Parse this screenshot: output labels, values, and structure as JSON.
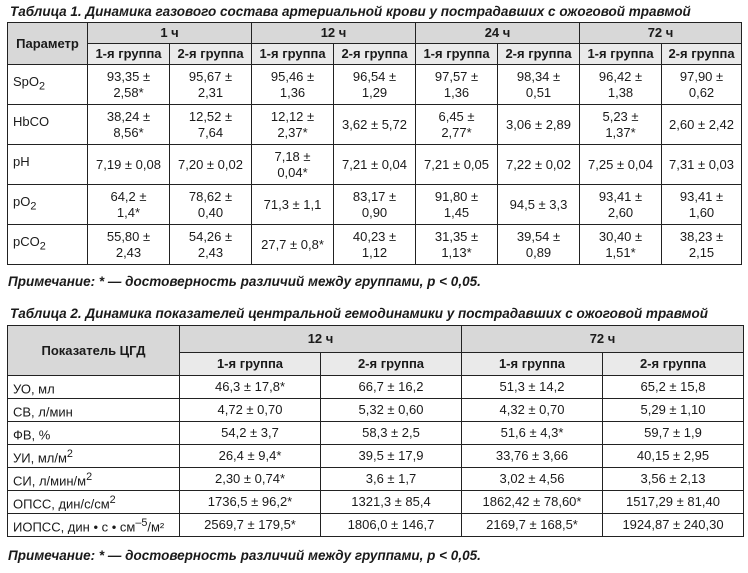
{
  "table1": {
    "caption": "Таблица 1. Динамика газового состава артериальной крови у пострадавших с ожоговой травмой",
    "param_header": "Параметр",
    "times": [
      "1 ч",
      "12 ч",
      "24 ч",
      "72 ч"
    ],
    "group1": "1-я группа",
    "group2": "2-я группа",
    "rows": [
      {
        "name": "SpO",
        "sub": "2",
        "cells": [
          "93,35 ±\n2,58*",
          "95,67 ±\n2,31",
          "95,46 ±\n1,36",
          "96,54 ±\n1,29",
          "97,57 ±\n1,36",
          "98,34 ±\n0,51",
          "96,42 ±\n1,38",
          "97,90 ±\n0,62"
        ]
      },
      {
        "name": "HbCO",
        "sub": "",
        "cells": [
          "38,24 ±\n8,56*",
          "12,52 ±\n7,64",
          "12,12 ±\n2,37*",
          "3,62 ± 5,72",
          "6,45 ±\n2,77*",
          "3,06 ± 2,89",
          "5,23 ±\n1,37*",
          "2,60 ± 2,42"
        ]
      },
      {
        "name": "pH",
        "sub": "",
        "cells": [
          "7,19 ± 0,08",
          "7,20 ± 0,02",
          "7,18 ±\n0,04*",
          "7,21 ± 0,04",
          "7,21 ± 0,05",
          "7,22 ± 0,02",
          "7,25 ± 0,04",
          "7,31 ± 0,03"
        ]
      },
      {
        "name": "pO",
        "sub": "2",
        "cells": [
          "64,2 ±\n1,4*",
          "78,62 ±\n0,40",
          "71,3 ± 1,1",
          "83,17 ±\n0,90",
          "91,80 ±\n1,45",
          "94,5 ± 3,3",
          "93,41 ±\n2,60",
          "93,41 ±\n1,60"
        ]
      },
      {
        "name": "pCO",
        "sub": "2",
        "cells": [
          "55,80 ±\n2,43",
          "54,26 ±\n2,43",
          "27,7 ± 0,8*",
          "40,23 ±\n1,12",
          "31,35 ±\n1,13*",
          "39,54 ±\n0,89",
          "30,40 ±\n1,51*",
          "38,23 ±\n2,15"
        ]
      }
    ],
    "note": "Примечание: * — достоверность различий между группами, p < 0,05."
  },
  "table2": {
    "caption": "Таблица 2. Динамика показателей центральной гемодинамики у пострадавших с ожоговой травмой",
    "param_header": "Показатель ЦГД",
    "times": [
      "12 ч",
      "72 ч"
    ],
    "group1": "1-я группа",
    "group2": "2-я группа",
    "rows": [
      {
        "name": "УО, мл",
        "sup": "",
        "tail": "",
        "cells": [
          "46,3 ± 17,8*",
          "66,7 ± 16,2",
          "51,3 ± 14,2",
          "65,2 ± 15,8"
        ]
      },
      {
        "name": "СВ, л/мин",
        "sup": "",
        "tail": "",
        "cells": [
          "4,72 ± 0,70",
          "5,32 ± 0,60",
          "4,32 ± 0,70",
          "5,29 ± 1,10"
        ]
      },
      {
        "name": "ФВ, %",
        "sup": "",
        "tail": "",
        "cells": [
          "54,2 ± 3,7",
          "58,3 ± 2,5",
          "51,6 ± 4,3*",
          "59,7 ± 1,9"
        ]
      },
      {
        "name": "УИ, мл/м",
        "sup": "2",
        "tail": "",
        "cells": [
          "26,4 ± 9,4*",
          "39,5 ± 17,9",
          "33,76 ± 3,66",
          "40,15 ± 2,95"
        ]
      },
      {
        "name": "СИ, л/мин/м",
        "sup": "2",
        "tail": "",
        "cells": [
          "2,30 ± 0,74*",
          "3,6 ± 1,7",
          "3,02 ± 4,56",
          "3,56 ± 2,13"
        ]
      },
      {
        "name": "ОПСС, дин/с/см",
        "sup": "2",
        "tail": "",
        "cells": [
          "1736,5 ± 96,2*",
          "1321,3 ± 85,4",
          "1862,42 ± 78,60*",
          "1517,29 ± 81,40"
        ]
      },
      {
        "name": "ИОПСС, дин • с • см",
        "sup": "–5",
        "tail": "/м²",
        "cells": [
          "2569,7 ± 179,5*",
          "1806,0 ± 146,7",
          "2169,7 ± 168,5*",
          "1924,87 ± 240,30"
        ]
      }
    ],
    "note": "Примечание: * — достоверность различий между группами, p < 0,05."
  }
}
